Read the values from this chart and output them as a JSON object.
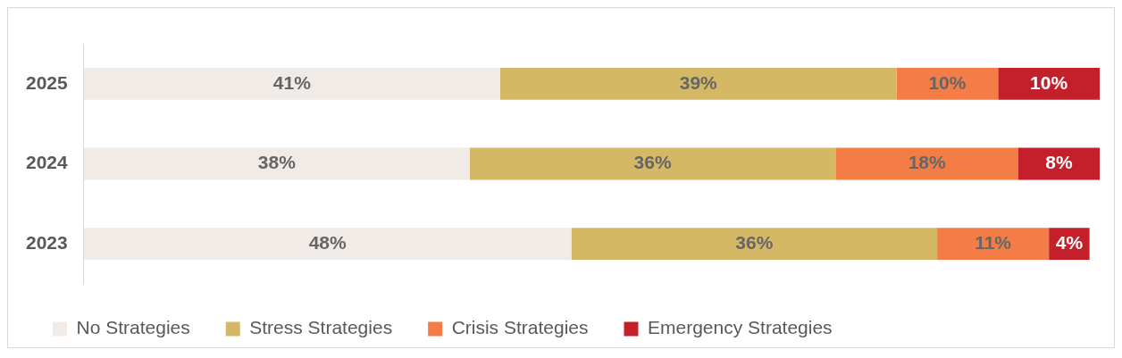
{
  "chart_data": {
    "type": "bar",
    "orientation": "horizontal",
    "stacked": true,
    "categories": [
      "2025",
      "2024",
      "2023"
    ],
    "series": [
      {
        "name": "No Strategies",
        "color": "#f0ebe7",
        "values": [
          41,
          38,
          48
        ],
        "value_labels": [
          "41%",
          "38%",
          "48%"
        ]
      },
      {
        "name": "Stress Strategies",
        "color": "#d4b866",
        "values": [
          39,
          36,
          36
        ],
        "value_labels": [
          "39%",
          "36%",
          "36%"
        ]
      },
      {
        "name": "Crisis Strategies",
        "color": "#f47c46",
        "values": [
          10,
          18,
          11
        ],
        "value_labels": [
          "10%",
          "18%",
          "11%"
        ]
      },
      {
        "name": "Emergency Strategies",
        "color": "#c4202b",
        "values": [
          10,
          8,
          4
        ],
        "value_labels": [
          "10%",
          "8%",
          "4%"
        ]
      }
    ],
    "legend": "bottom",
    "grid": false
  }
}
